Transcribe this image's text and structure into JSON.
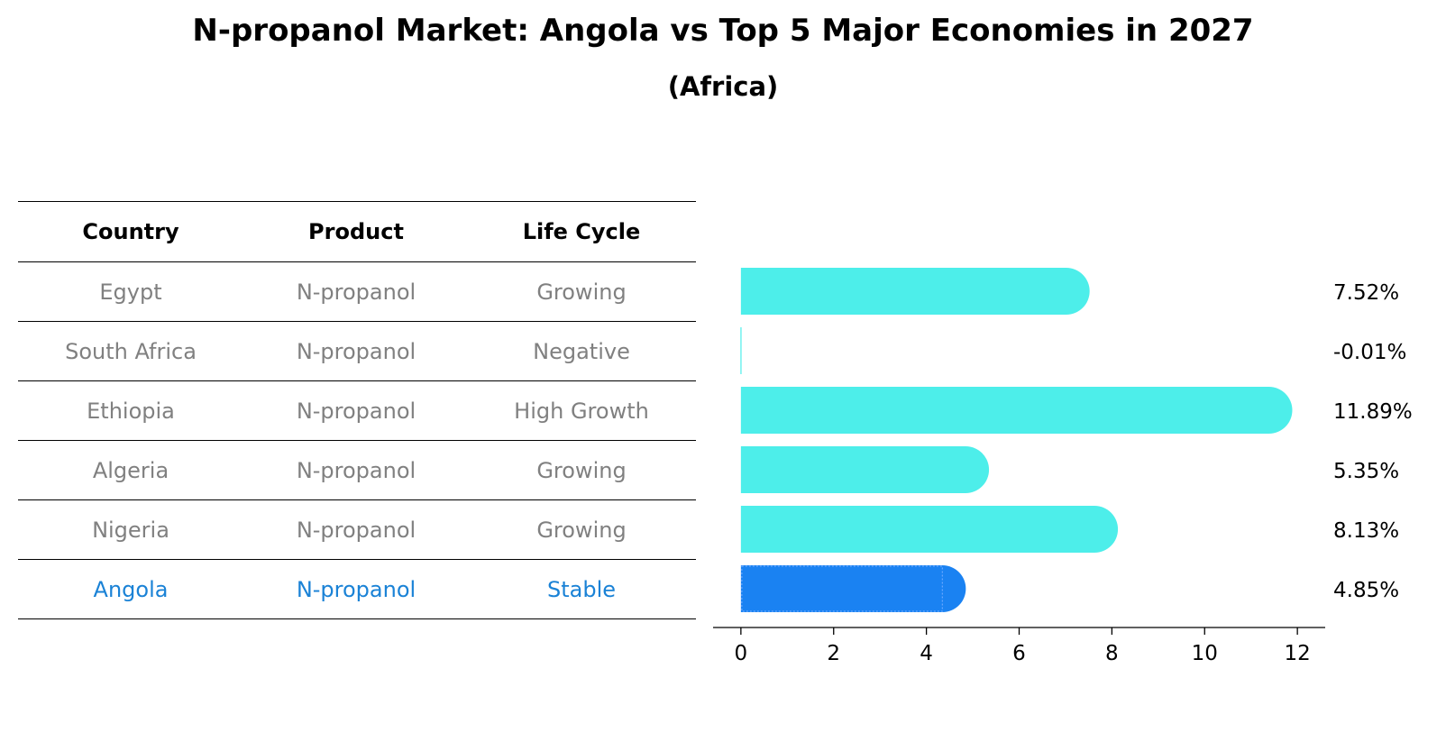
{
  "title": "N-propanol Market: Angola vs Top 5 Major Economies in 2027",
  "subtitle": "(Africa)",
  "table": {
    "headers": [
      "Country",
      "Product",
      "Life Cycle"
    ],
    "rows": [
      {
        "country": "Egypt",
        "product": "N-propanol",
        "life_cycle": "Growing"
      },
      {
        "country": "South Africa",
        "product": "N-propanol",
        "life_cycle": "Negative"
      },
      {
        "country": "Ethiopia",
        "product": "N-propanol",
        "life_cycle": "High Growth"
      },
      {
        "country": "Algeria",
        "product": "N-propanol",
        "life_cycle": "Growing"
      },
      {
        "country": "Nigeria",
        "product": "N-propanol",
        "life_cycle": "Growing"
      },
      {
        "country": "Angola",
        "product": "N-propanol",
        "life_cycle": "Stable"
      }
    ]
  },
  "colors": {
    "bar_default": "#4deeea",
    "bar_highlight": "#1a82f2",
    "text_highlight": "#1a82d6",
    "text_muted": "#808080"
  },
  "chart_data": {
    "type": "bar",
    "orientation": "horizontal",
    "title": "N-propanol Market: Angola vs Top 5 Major Economies in 2027",
    "subtitle": "(Africa)",
    "categories": [
      "Egypt",
      "South Africa",
      "Ethiopia",
      "Algeria",
      "Nigeria",
      "Angola"
    ],
    "values": [
      7.52,
      -0.01,
      11.89,
      5.35,
      8.13,
      4.85
    ],
    "value_labels": [
      "7.52%",
      "-0.01%",
      "11.89%",
      "5.35%",
      "8.13%",
      "4.85%"
    ],
    "highlight": "Angola",
    "xlim": [
      -0.6,
      12.6
    ],
    "xticks": [
      0,
      2,
      4,
      6,
      8,
      10,
      12
    ],
    "xlabel": "",
    "ylabel": "",
    "grid": false
  }
}
